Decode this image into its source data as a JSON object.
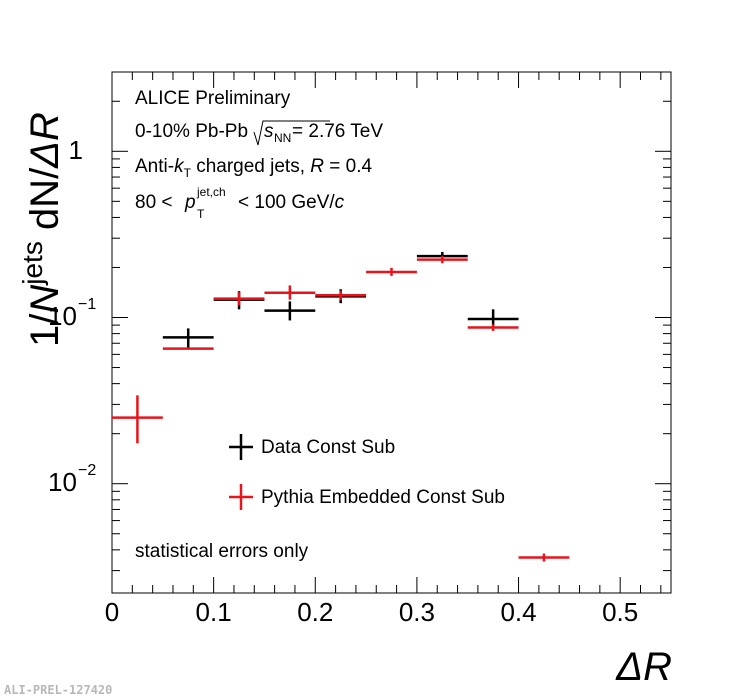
{
  "chart_data": {
    "type": "scatter",
    "title": "",
    "xlabel": "ΔR",
    "ylabel": "1/N^jets dN/ΔR",
    "ylabel_parts": {
      "a": "1/",
      "b": "N",
      "c": "jets",
      "d": " dN/",
      "e": "ΔR"
    },
    "xlim": [
      0,
      0.55
    ],
    "ylim": [
      0.0022,
      3.0
    ],
    "yscale": "log",
    "x_ticks": [
      {
        "v": 0,
        "label": "0"
      },
      {
        "v": 0.1,
        "label": "0.1"
      },
      {
        "v": 0.2,
        "label": "0.2"
      },
      {
        "v": 0.3,
        "label": "0.3"
      },
      {
        "v": 0.4,
        "label": "0.4"
      },
      {
        "v": 0.5,
        "label": "0.5"
      }
    ],
    "y_tick_labels": {
      "one": "1",
      "tenth_base": "10",
      "tenth_exp": "−1",
      "hundredth_base": "10",
      "hundredth_exp": "−2"
    },
    "annotations": {
      "line1": "ALICE Preliminary",
      "line2_a": "0-10% Pb-Pb ",
      "line2_s": "s",
      "line2_sub": "NN",
      "line2_b": " = 2.76 TeV",
      "line3_a": "Anti-",
      "line3_k": "k",
      "line3_sub": "T",
      "line3_b": " charged jets, ",
      "line3_R": "R",
      "line3_c": " = 0.4",
      "line4_a": "80 < ",
      "line4_p": "p",
      "line4_sup": "jet,ch",
      "line4_sub": "T",
      "line4_b": " < 100 GeV/",
      "line4_c": "c",
      "stat_note": "statistical errors only"
    },
    "legend": [
      {
        "name": "Data Const Sub",
        "color": "#000000"
      },
      {
        "name": "Pythia Embedded Const Sub",
        "color": "#e8141b"
      }
    ],
    "series": [
      {
        "name": "Data Const Sub",
        "color": "#000000",
        "points": [
          {
            "x": 0.075,
            "xerr": 0.025,
            "y": 0.076,
            "ylo": 0.066,
            "yhi": 0.086
          },
          {
            "x": 0.125,
            "xerr": 0.025,
            "y": 0.128,
            "ylo": 0.112,
            "yhi": 0.144
          },
          {
            "x": 0.175,
            "xerr": 0.025,
            "y": 0.11,
            "ylo": 0.096,
            "yhi": 0.125
          },
          {
            "x": 0.225,
            "xerr": 0.025,
            "y": 0.134,
            "ylo": 0.122,
            "yhi": 0.148
          },
          {
            "x": 0.325,
            "xerr": 0.025,
            "y": 0.234,
            "ylo": 0.22,
            "yhi": 0.248
          },
          {
            "x": 0.375,
            "xerr": 0.025,
            "y": 0.098,
            "ylo": 0.086,
            "yhi": 0.112
          }
        ]
      },
      {
        "name": "Pythia Embedded Const Sub",
        "color": "#e8141b",
        "points": [
          {
            "x": 0.025,
            "xerr": 0.025,
            "y": 0.025,
            "ylo": 0.0175,
            "yhi": 0.034
          },
          {
            "x": 0.075,
            "xerr": 0.025,
            "y": 0.065,
            "ylo": 0.065,
            "yhi": 0.065
          },
          {
            "x": 0.125,
            "xerr": 0.025,
            "y": 0.13,
            "ylo": 0.118,
            "yhi": 0.142
          },
          {
            "x": 0.175,
            "xerr": 0.025,
            "y": 0.141,
            "ylo": 0.128,
            "yhi": 0.156
          },
          {
            "x": 0.225,
            "xerr": 0.025,
            "y": 0.136,
            "ylo": 0.127,
            "yhi": 0.145
          },
          {
            "x": 0.275,
            "xerr": 0.025,
            "y": 0.188,
            "ylo": 0.178,
            "yhi": 0.199
          },
          {
            "x": 0.325,
            "xerr": 0.025,
            "y": 0.223,
            "ylo": 0.212,
            "yhi": 0.235
          },
          {
            "x": 0.375,
            "xerr": 0.025,
            "y": 0.087,
            "ylo": 0.083,
            "yhi": 0.091
          },
          {
            "x": 0.425,
            "xerr": 0.025,
            "y": 0.0036,
            "ylo": 0.0034,
            "yhi": 0.0038
          }
        ]
      }
    ],
    "watermark": "ALI-PREL-127420"
  }
}
